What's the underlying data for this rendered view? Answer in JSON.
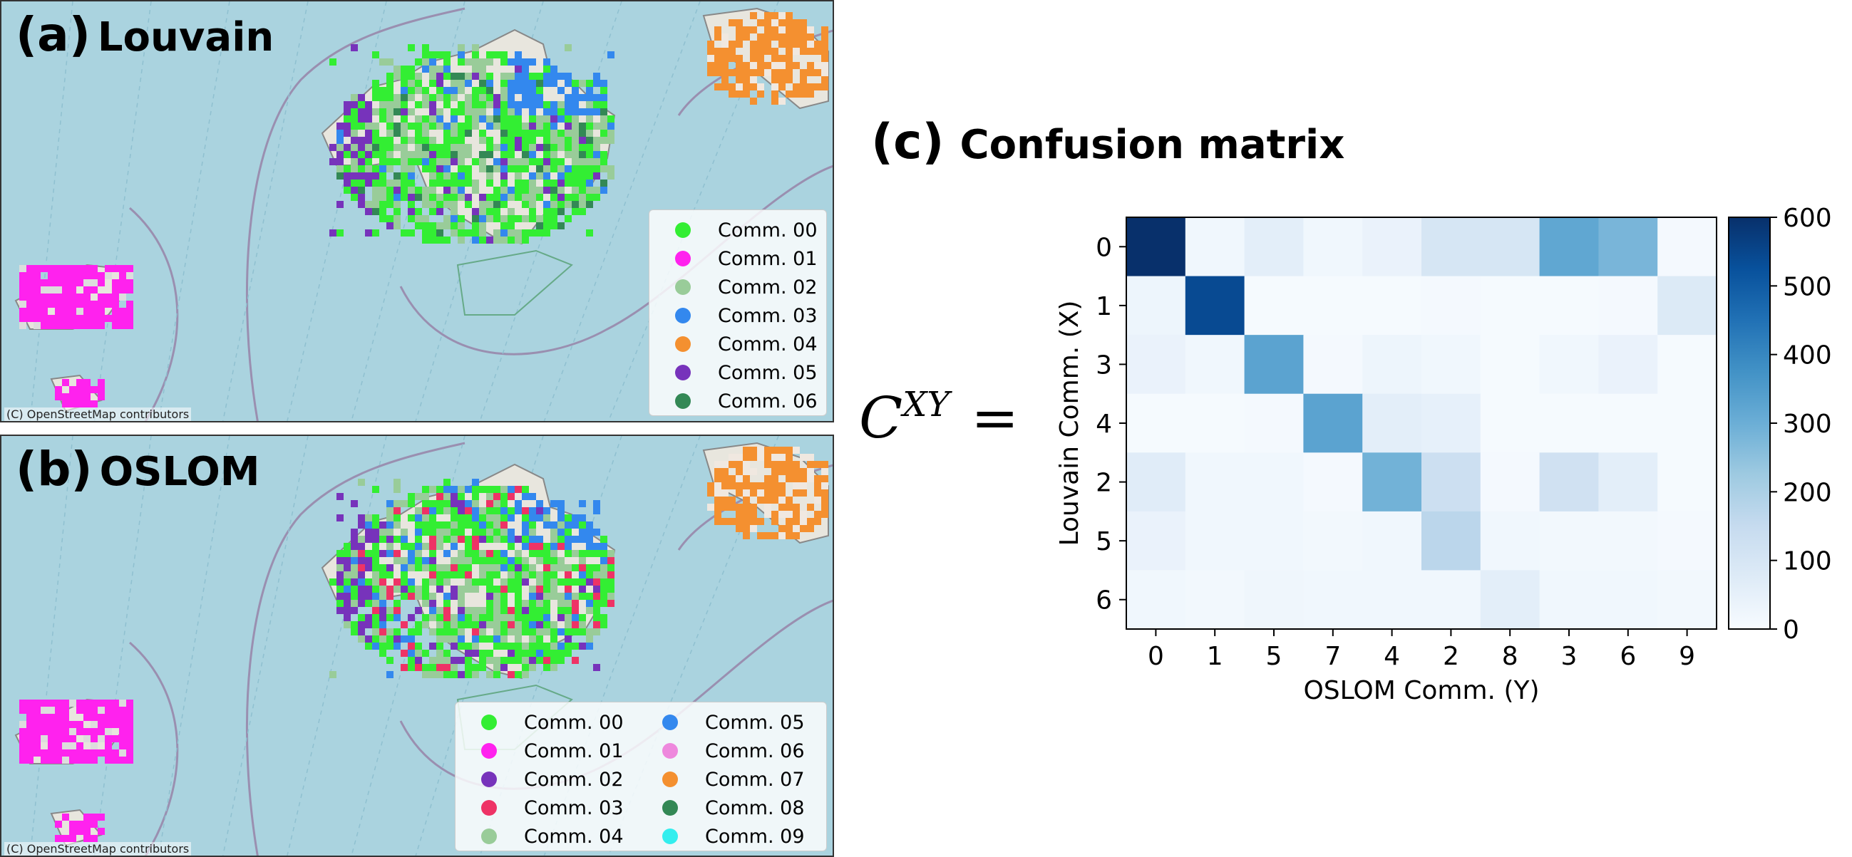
{
  "panels": {
    "a": {
      "letter": "(a)",
      "name": "Louvain",
      "attribution": "(C) OpenStreetMap contributors"
    },
    "b": {
      "letter": "(b)",
      "name": "OSLOM",
      "attribution": "(C) OpenStreetMap contributors"
    },
    "c": {
      "letter": "(c)",
      "name": "Confusion matrix"
    }
  },
  "formula": {
    "base": "C",
    "sup": "XY",
    "eq": "="
  },
  "legend_a": [
    {
      "label": "Comm. 00",
      "color": "#33ee33"
    },
    {
      "label": "Comm. 01",
      "color": "#ff22ee"
    },
    {
      "label": "Comm. 02",
      "color": "#99cc99"
    },
    {
      "label": "Comm. 03",
      "color": "#3388ee"
    },
    {
      "label": "Comm. 04",
      "color": "#f49030"
    },
    {
      "label": "Comm. 05",
      "color": "#7733bb"
    },
    {
      "label": "Comm. 06",
      "color": "#338855"
    }
  ],
  "legend_b": [
    {
      "label": "Comm. 00",
      "color": "#33ee33"
    },
    {
      "label": "Comm. 01",
      "color": "#ff22ee"
    },
    {
      "label": "Comm. 02",
      "color": "#7733bb"
    },
    {
      "label": "Comm. 03",
      "color": "#ee3366"
    },
    {
      "label": "Comm. 04",
      "color": "#99cc99"
    },
    {
      "label": "Comm. 05",
      "color": "#3388ee"
    },
    {
      "label": "Comm. 06",
      "color": "#ee88dd"
    },
    {
      "label": "Comm. 07",
      "color": "#f49030"
    },
    {
      "label": "Comm. 08",
      "color": "#338855"
    },
    {
      "label": "Comm. 09",
      "color": "#33eeee"
    }
  ],
  "chart_data": {
    "type": "heatmap",
    "title": "Confusion matrix",
    "xlabel": "OSLOM Comm. (Y)",
    "ylabel": "Louvain Comm. (X)",
    "x_categories": [
      "0",
      "1",
      "5",
      "7",
      "4",
      "2",
      "8",
      "3",
      "6",
      "9"
    ],
    "y_categories": [
      "0",
      "1",
      "3",
      "4",
      "2",
      "5",
      "6"
    ],
    "values": [
      [
        600,
        20,
        60,
        20,
        40,
        100,
        100,
        320,
        280,
        10
      ],
      [
        30,
        540,
        5,
        5,
        5,
        10,
        5,
        5,
        10,
        80
      ],
      [
        40,
        20,
        330,
        10,
        30,
        20,
        5,
        20,
        40,
        5
      ],
      [
        5,
        5,
        10,
        330,
        60,
        50,
        5,
        5,
        5,
        5
      ],
      [
        70,
        20,
        20,
        10,
        290,
        130,
        10,
        120,
        60,
        5
      ],
      [
        40,
        20,
        20,
        15,
        20,
        170,
        20,
        15,
        15,
        10
      ],
      [
        20,
        15,
        25,
        20,
        20,
        20,
        60,
        20,
        20,
        15
      ]
    ],
    "colorbar": {
      "min": 0,
      "max": 600,
      "ticks": [
        0,
        100,
        200,
        300,
        400,
        500,
        600
      ]
    },
    "colormap": "Blues"
  }
}
